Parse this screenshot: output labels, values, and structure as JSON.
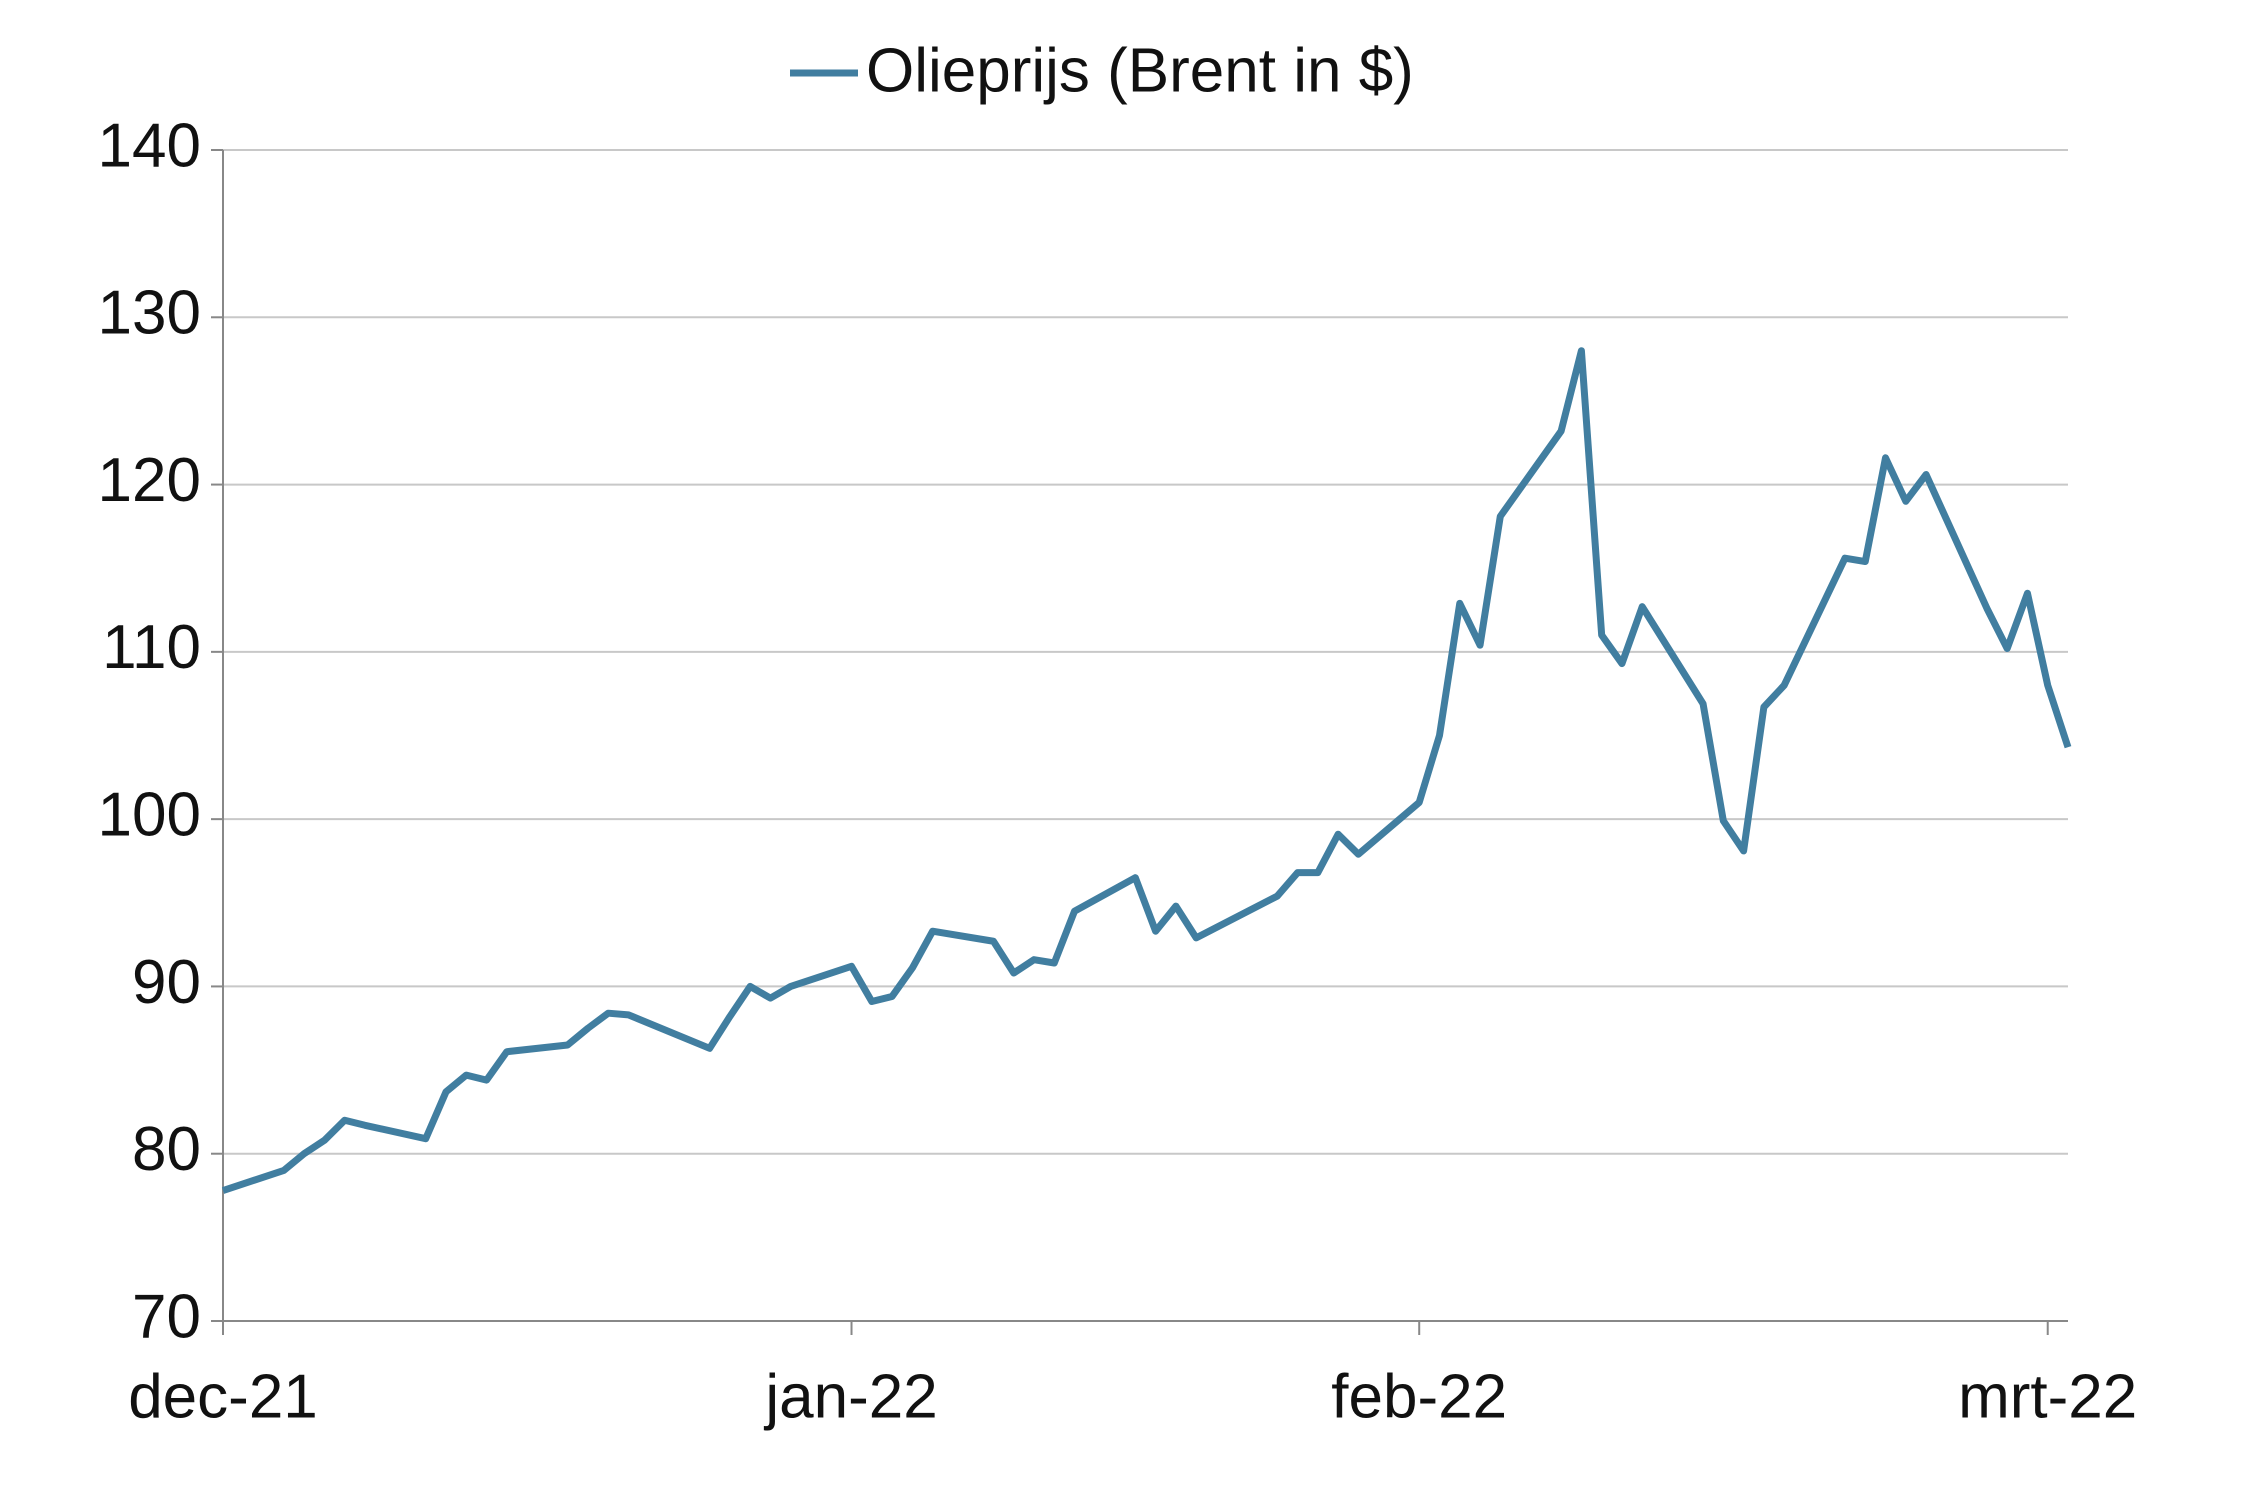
{
  "chart_data": {
    "type": "line",
    "x": [
      0,
      3,
      4,
      5,
      6,
      7,
      10,
      11,
      12,
      13,
      14,
      17,
      18,
      19,
      20,
      24,
      25,
      26,
      27,
      28,
      31,
      32,
      33,
      34,
      35,
      38,
      39,
      40,
      41,
      42,
      45,
      46,
      47,
      48,
      52,
      53,
      54,
      55,
      56,
      59,
      60,
      61,
      62,
      63,
      66,
      67,
      68,
      69,
      70,
      73,
      74,
      75,
      76,
      77,
      80,
      81,
      82,
      83,
      84,
      87,
      88,
      89,
      90,
      91
    ],
    "series": [
      {
        "name": "Olieprijs (Brent in $)",
        "color": "#417ea0",
        "values": [
          77.8,
          79,
          80,
          80.8,
          82,
          81.7,
          80.9,
          83.7,
          84.7,
          84.4,
          86.1,
          86.5,
          87.5,
          88.4,
          88.3,
          86.3,
          88.2,
          90,
          89.3,
          90,
          91.2,
          89.1,
          89.4,
          91.1,
          93.3,
          92.7,
          90.8,
          91.6,
          91.4,
          94.5,
          96.5,
          93.3,
          94.8,
          92.9,
          95.4,
          96.8,
          96.8,
          99.1,
          97.9,
          101,
          105,
          112.9,
          110.4,
          118.1,
          123.2,
          128,
          111,
          109.3,
          112.7,
          106.9,
          99.9,
          98.1,
          106.7,
          108,
          115.6,
          115.4,
          121.6,
          119,
          120.6,
          112.6,
          110.2,
          113.5,
          108,
          104.3
        ]
      }
    ],
    "xlim": [
      0,
      91
    ],
    "xticks": [
      {
        "value": 0,
        "label": "dec-21"
      },
      {
        "value": 31,
        "label": "jan-22"
      },
      {
        "value": 59,
        "label": "feb-22"
      },
      {
        "value": 90,
        "label": "mrt-22"
      }
    ],
    "ylim": [
      70,
      140
    ],
    "yticks": [
      70,
      80,
      90,
      100,
      110,
      120,
      130,
      140
    ],
    "grid": true,
    "legend": "top"
  }
}
